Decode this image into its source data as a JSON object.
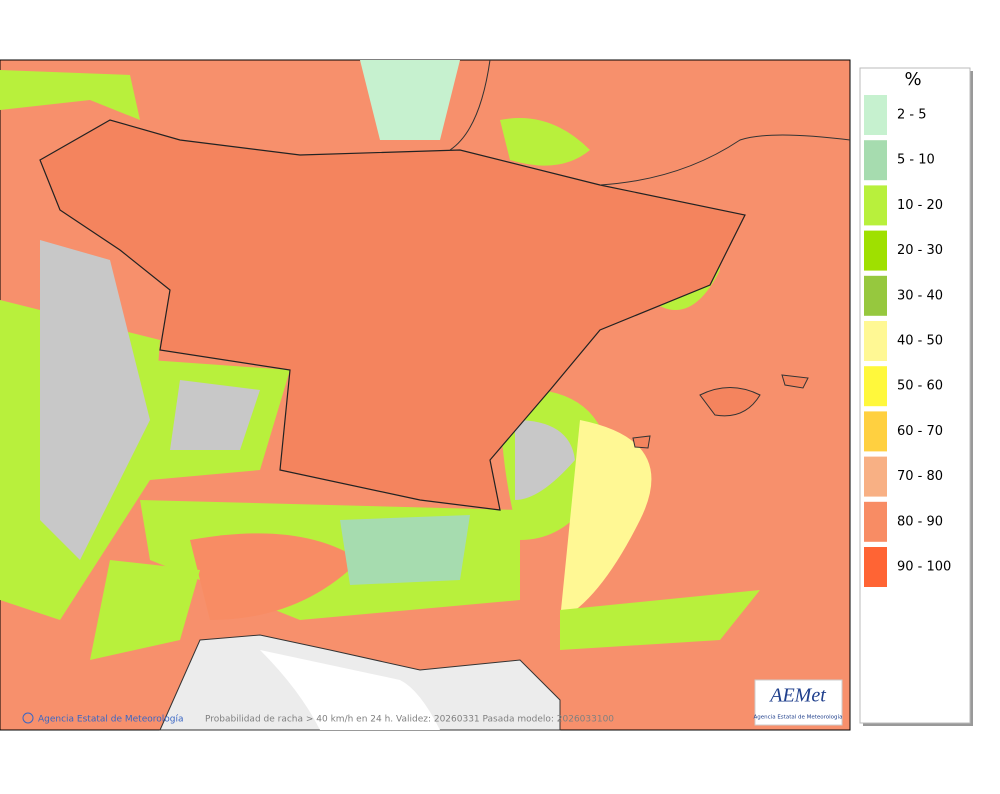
{
  "legend": {
    "title": "%",
    "items": [
      {
        "label": "2 - 5",
        "color": "#c6f1cf"
      },
      {
        "label": "5 - 10",
        "color": "#a6dcaf"
      },
      {
        "label": "10 - 20",
        "color": "#b8f03c"
      },
      {
        "label": "20 - 30",
        "color": "#9fe000"
      },
      {
        "label": "30 - 40",
        "color": "#96c83e"
      },
      {
        "label": "40 - 50",
        "color": "#fff894"
      },
      {
        "label": "50 - 60",
        "color": "#fff83c"
      },
      {
        "label": "60 - 70",
        "color": "#ffd040"
      },
      {
        "label": "70 - 80",
        "color": "#f8b084"
      },
      {
        "label": "80 - 90",
        "color": "#f88c64"
      },
      {
        "label": "90 - 100",
        "color": "#ff6434"
      }
    ]
  },
  "footer": {
    "credit": "Agencia Estatal de Meteorología",
    "caption": "Probabilidad de racha > 40 km/h en 24 h. Validez: 20260331 Pasada modelo: 2026033100"
  },
  "logo": {
    "name": "AEMet",
    "subtitle": "Agencia Estatal de Meteorología"
  }
}
